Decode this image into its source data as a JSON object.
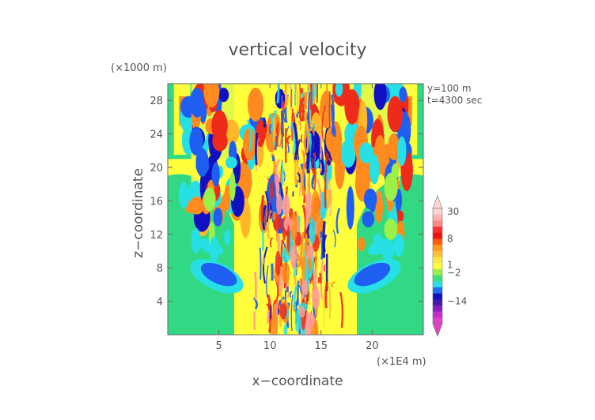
{
  "chart_data": {
    "type": "heatmap",
    "title": "vertical velocity",
    "xlabel": "x−coordinate",
    "ylabel": "z−coordinate",
    "x_unit": "(×1E4 m)",
    "y_unit": "(×1000 m)",
    "info_lines": [
      "y=100  m",
      "t=4300 sec"
    ],
    "xlim": [
      0,
      25
    ],
    "ylim": [
      0,
      30
    ],
    "xticks": [
      5,
      10,
      15,
      20
    ],
    "yticks": [
      4,
      8,
      12,
      16,
      20,
      24,
      28
    ],
    "colorbar": {
      "labels": [
        "30",
        "8",
        "1",
        "−2",
        "−14"
      ],
      "label_values": [
        30,
        8,
        1,
        -2,
        -14
      ],
      "colors": [
        "#ffd4d4",
        "#ffb0b0",
        "#ff8888",
        "#ff3030",
        "#ee1010",
        "#ff5a10",
        "#ff9a20",
        "#ffc030",
        "#ffe840",
        "#ffff3c",
        "#9bf04a",
        "#3ee07c",
        "#27e0e6",
        "#1e6ff0",
        "#1010c0",
        "#4418a8",
        "#8820c0",
        "#c030c8",
        "#e040c8"
      ]
    },
    "field_description_values": {
      "background": 0,
      "center_x": 12.5,
      "max_positive": 30,
      "max_negative": -14
    }
  }
}
